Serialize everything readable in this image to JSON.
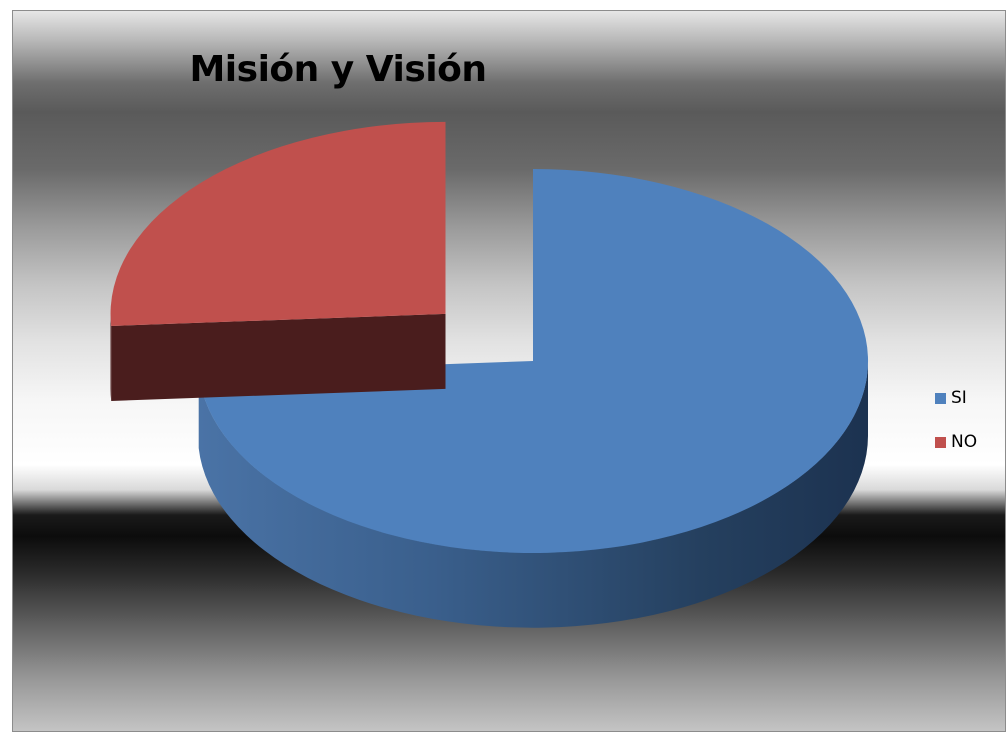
{
  "chart_data": {
    "type": "pie",
    "title": "Misión y Visión",
    "slices": [
      {
        "label": "SI",
        "value": 74,
        "color": "#4f81bd",
        "exploded": false
      },
      {
        "label": "NO",
        "value": 26,
        "color": "#c0504d",
        "exploded": true
      }
    ],
    "legend_position": "right",
    "style": "3d"
  }
}
